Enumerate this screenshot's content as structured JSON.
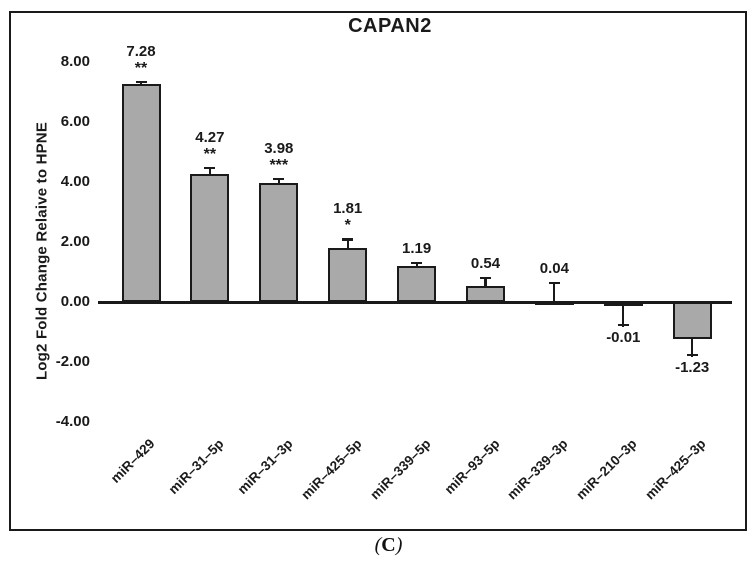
{
  "figure": {
    "caption": {
      "open": "(",
      "letter": "C",
      "close": ")"
    }
  },
  "chart_data": {
    "type": "bar",
    "title": "CAPAN2",
    "xlabel": "",
    "ylabel": "Log2 Fold Change Relaive to HPNE",
    "categories": [
      "miR–429",
      "miR–31–5p",
      "miR–31–3p",
      "miR–425–5p",
      "miR–339–5p",
      "miR–93–5p",
      "miR–339–3p",
      "miR–210–3p",
      "miR–425–3p"
    ],
    "values": [
      7.28,
      4.27,
      3.98,
      1.81,
      1.19,
      0.54,
      0.04,
      -0.01,
      -1.23
    ],
    "bar_value_labels": [
      "7.28",
      "4.27",
      "3.98",
      "1.81",
      "1.19",
      "0.54",
      "0.04",
      "-0.01",
      "-1.23"
    ],
    "significance": [
      "**",
      "**",
      "***",
      "*",
      "",
      "",
      "",
      "",
      ""
    ],
    "error_bars": [
      0.08,
      0.22,
      0.17,
      0.31,
      0.15,
      0.3,
      0.64,
      0.78,
      0.58
    ],
    "y_ticks": [
      {
        "label": "8.00",
        "value": 8
      },
      {
        "label": "6.00",
        "value": 6
      },
      {
        "label": "4.00",
        "value": 4
      },
      {
        "label": "2.00",
        "value": 2
      },
      {
        "label": "0.00",
        "value": 0
      },
      {
        "label": "-2.00",
        "value": -2
      },
      {
        "label": "-4.00",
        "value": -4
      }
    ],
    "ylim": [
      -4.4,
      9.4
    ],
    "grid": false,
    "legend": null,
    "x_tick_rotation": -45,
    "bar_color": "#a9a9a9",
    "bar_border_color": "#1a1a1a",
    "axis_color": "#1a1a1a"
  }
}
